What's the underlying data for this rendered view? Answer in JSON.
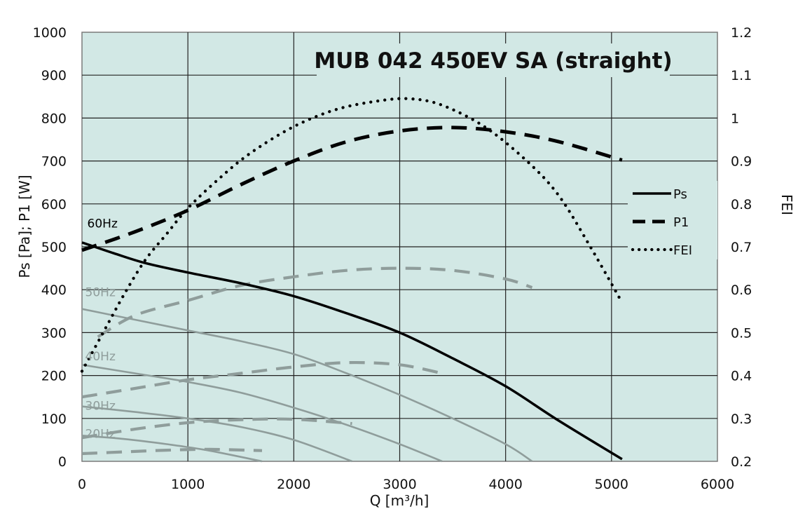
{
  "chart_data": {
    "type": "line",
    "title": "MUB 042 450EV SA (straight)",
    "xlabel": "Q [m³/h]",
    "ylabel": "Ps [Pa]; P1 [W]",
    "y2label": "FEI",
    "xlim": [
      0,
      6000
    ],
    "ylim": [
      0,
      1000
    ],
    "y2lim": [
      0.2,
      1.2
    ],
    "x_ticks": [
      "0",
      "1000",
      "2000",
      "3000",
      "4000",
      "5000",
      "6000"
    ],
    "y_ticks": [
      "0",
      "100",
      "200",
      "300",
      "400",
      "500",
      "600",
      "700",
      "800",
      "900",
      "1000"
    ],
    "y2_ticks": [
      "0.2",
      "0.3",
      "0.4",
      "0.5",
      "0.6",
      "0.7",
      "0.8",
      "0.9",
      "1",
      "1.1",
      "1.2"
    ],
    "grid": true,
    "legend_position": "right",
    "background_color": "#d2e8e5",
    "main_color": "#000000",
    "secondary_color": "#8f9d9b",
    "legend": [
      {
        "label": "Ps",
        "style": "solid"
      },
      {
        "label": "P1",
        "style": "dashed"
      },
      {
        "label": "FEI",
        "style": "dotted"
      }
    ],
    "frequency_labels": [
      {
        "text": "60Hz",
        "x": 50,
        "y": 545,
        "primary": true
      },
      {
        "text": "50Hz",
        "x": 30,
        "y": 385,
        "primary": false
      },
      {
        "text": "40Hz",
        "x": 30,
        "y": 235,
        "primary": false
      },
      {
        "text": "30Hz",
        "x": 30,
        "y": 120,
        "primary": false
      },
      {
        "text": "20Hz",
        "x": 30,
        "y": 55,
        "primary": false
      }
    ],
    "series": [
      {
        "name": "Ps",
        "axis": "left",
        "style": "solid",
        "primary": true,
        "x": [
          0,
          300,
          600,
          1000,
          1500,
          2000,
          2500,
          3000,
          3500,
          4000,
          4500,
          5100
        ],
        "y": [
          510,
          485,
          462,
          440,
          415,
          385,
          345,
          300,
          240,
          175,
          95,
          5
        ]
      },
      {
        "name": "P1",
        "axis": "left",
        "style": "dashed",
        "primary": true,
        "x": [
          0,
          500,
          1000,
          1500,
          2000,
          2500,
          3000,
          3500,
          4000,
          4500,
          5100
        ],
        "y": [
          492,
          535,
          585,
          645,
          700,
          745,
          770,
          778,
          768,
          745,
          702
        ]
      },
      {
        "name": "FEI",
        "axis": "right",
        "style": "dotted",
        "primary": true,
        "x": [
          0,
          200,
          400,
          600,
          800,
          1000,
          1300,
          1600,
          2000,
          2400,
          2800,
          3100,
          3400,
          3800,
          4200,
          4500,
          4800,
          5100
        ],
        "y": [
          0.41,
          0.5,
          0.59,
          0.67,
          0.73,
          0.79,
          0.86,
          0.92,
          0.98,
          1.02,
          1.04,
          1.045,
          1.03,
          0.98,
          0.9,
          0.82,
          0.7,
          0.57
        ]
      },
      {
        "name": "Ps 50Hz",
        "axis": "left",
        "style": "solid",
        "primary": false,
        "x": [
          0,
          500,
          1000,
          1500,
          2000,
          2500,
          3000,
          3500,
          4000,
          4250
        ],
        "y": [
          355,
          330,
          305,
          280,
          250,
          205,
          155,
          100,
          40,
          0
        ]
      },
      {
        "name": "P1 50Hz",
        "axis": "left",
        "style": "dashed",
        "primary": false,
        "x": [
          150,
          500,
          1000,
          1500,
          2000,
          2500,
          3000,
          3500,
          4000,
          4250
        ],
        "y": [
          290,
          340,
          375,
          410,
          430,
          445,
          450,
          445,
          425,
          405
        ]
      },
      {
        "name": "Ps 40Hz",
        "axis": "left",
        "style": "solid",
        "primary": false,
        "x": [
          0,
          500,
          1000,
          1500,
          2000,
          2500,
          3000,
          3400
        ],
        "y": [
          225,
          205,
          185,
          160,
          125,
          85,
          40,
          0
        ]
      },
      {
        "name": "P1 40Hz",
        "axis": "left",
        "style": "dashed",
        "primary": false,
        "x": [
          0,
          500,
          1000,
          1500,
          2000,
          2500,
          3000,
          3400
        ],
        "y": [
          150,
          170,
          190,
          205,
          220,
          230,
          225,
          205
        ]
      },
      {
        "name": "Ps 30Hz",
        "axis": "left",
        "style": "solid",
        "primary": false,
        "x": [
          0,
          500,
          1000,
          1500,
          2000,
          2550
        ],
        "y": [
          128,
          115,
          100,
          80,
          50,
          0
        ]
      },
      {
        "name": "P1 30Hz",
        "axis": "left",
        "style": "dashed",
        "primary": false,
        "x": [
          0,
          500,
          1000,
          1500,
          2000,
          2550
        ],
        "y": [
          55,
          75,
          90,
          97,
          98,
          88
        ]
      },
      {
        "name": "Ps 20Hz",
        "axis": "left",
        "style": "solid",
        "primary": false,
        "x": [
          0,
          400,
          800,
          1200,
          1700
        ],
        "y": [
          60,
          52,
          40,
          25,
          0
        ]
      },
      {
        "name": "P1 20Hz",
        "axis": "left",
        "style": "dashed",
        "primary": false,
        "x": [
          0,
          400,
          800,
          1200,
          1700
        ],
        "y": [
          18,
          22,
          26,
          28,
          25
        ]
      }
    ]
  }
}
